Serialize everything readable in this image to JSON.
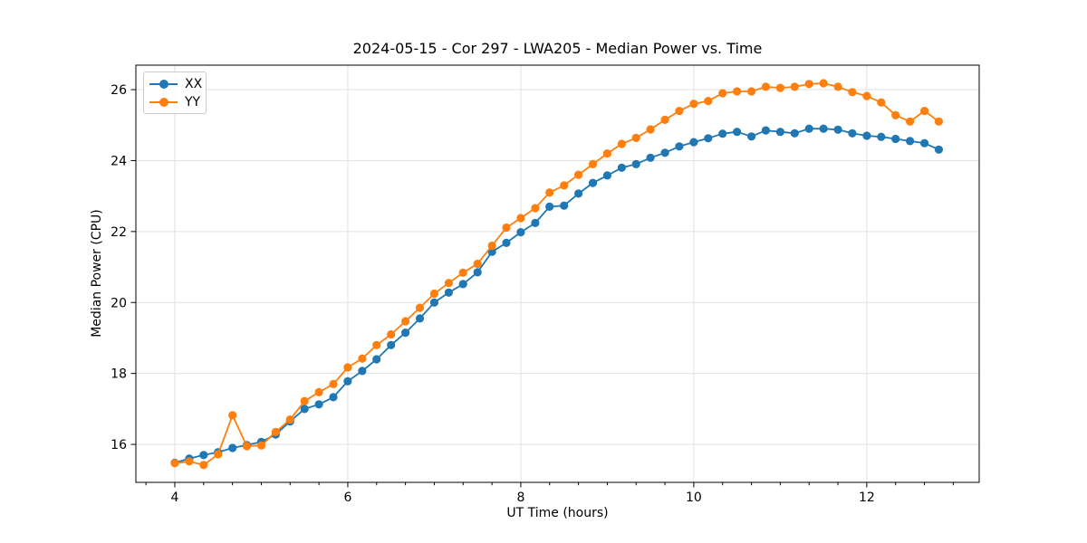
{
  "title": "2024-05-15 - Cor 297 - LWA205 - Median Power vs. Time",
  "chart_data": {
    "type": "line",
    "title": "2024-05-15 - Cor 297 - LWA205 - Median Power vs. Time",
    "xlabel": "UT Time (hours)",
    "ylabel": "Median Power (CPU)",
    "xlim": [
      3.55,
      13.3
    ],
    "ylim": [
      14.93,
      26.69
    ],
    "x_ticks": [
      4,
      6,
      8,
      10,
      12
    ],
    "y_ticks": [
      16,
      18,
      20,
      22,
      24,
      26
    ],
    "x_minor_tick_step": 0.3333,
    "grid": true,
    "grid_color": "#e0e0e0",
    "legend_position": "upper left",
    "x": [
      4.0,
      4.167,
      4.333,
      4.5,
      4.667,
      4.833,
      5.0,
      5.167,
      5.333,
      5.5,
      5.667,
      5.833,
      6.0,
      6.167,
      6.333,
      6.5,
      6.667,
      6.833,
      7.0,
      7.167,
      7.333,
      7.5,
      7.667,
      7.833,
      8.0,
      8.167,
      8.333,
      8.5,
      8.667,
      8.833,
      9.0,
      9.167,
      9.333,
      9.5,
      9.667,
      9.833,
      10.0,
      10.167,
      10.333,
      10.5,
      10.667,
      10.833,
      11.0,
      11.167,
      11.333,
      11.5,
      11.667,
      11.833,
      12.0,
      12.167,
      12.333,
      12.5,
      12.667,
      12.833
    ],
    "series": [
      {
        "name": "XX",
        "color": "#1f77b4",
        "values": [
          15.48,
          15.6,
          15.7,
          15.78,
          15.9,
          15.98,
          16.07,
          16.28,
          16.65,
          17.0,
          17.13,
          17.33,
          17.78,
          18.07,
          18.4,
          18.8,
          19.15,
          19.55,
          20.0,
          20.28,
          20.52,
          20.85,
          21.43,
          21.68,
          21.98,
          22.24,
          22.7,
          22.73,
          23.07,
          23.37,
          23.58,
          23.8,
          23.9,
          24.08,
          24.22,
          24.4,
          24.52,
          24.63,
          24.76,
          24.81,
          24.68,
          24.85,
          24.81,
          24.77,
          24.9,
          24.9,
          24.87,
          24.77,
          24.7,
          24.67,
          24.61,
          24.55,
          24.49,
          24.31
        ]
      },
      {
        "name": "YY",
        "color": "#ff7f0e",
        "values": [
          15.47,
          15.52,
          15.42,
          15.72,
          16.82,
          15.95,
          15.97,
          16.35,
          16.7,
          17.22,
          17.47,
          17.7,
          18.17,
          18.42,
          18.8,
          19.1,
          19.47,
          19.85,
          20.25,
          20.55,
          20.84,
          21.09,
          21.6,
          22.11,
          22.38,
          22.66,
          23.1,
          23.3,
          23.6,
          23.9,
          24.2,
          24.47,
          24.64,
          24.88,
          25.15,
          25.4,
          25.6,
          25.68,
          25.9,
          25.95,
          25.95,
          26.08,
          26.05,
          26.08,
          26.16,
          26.18,
          26.08,
          25.93,
          25.82,
          25.64,
          25.28,
          25.1,
          25.4,
          25.1
        ]
      }
    ]
  },
  "colors": {
    "axis": "#000000",
    "grid": "#e0e0e0",
    "background": "#ffffff"
  }
}
